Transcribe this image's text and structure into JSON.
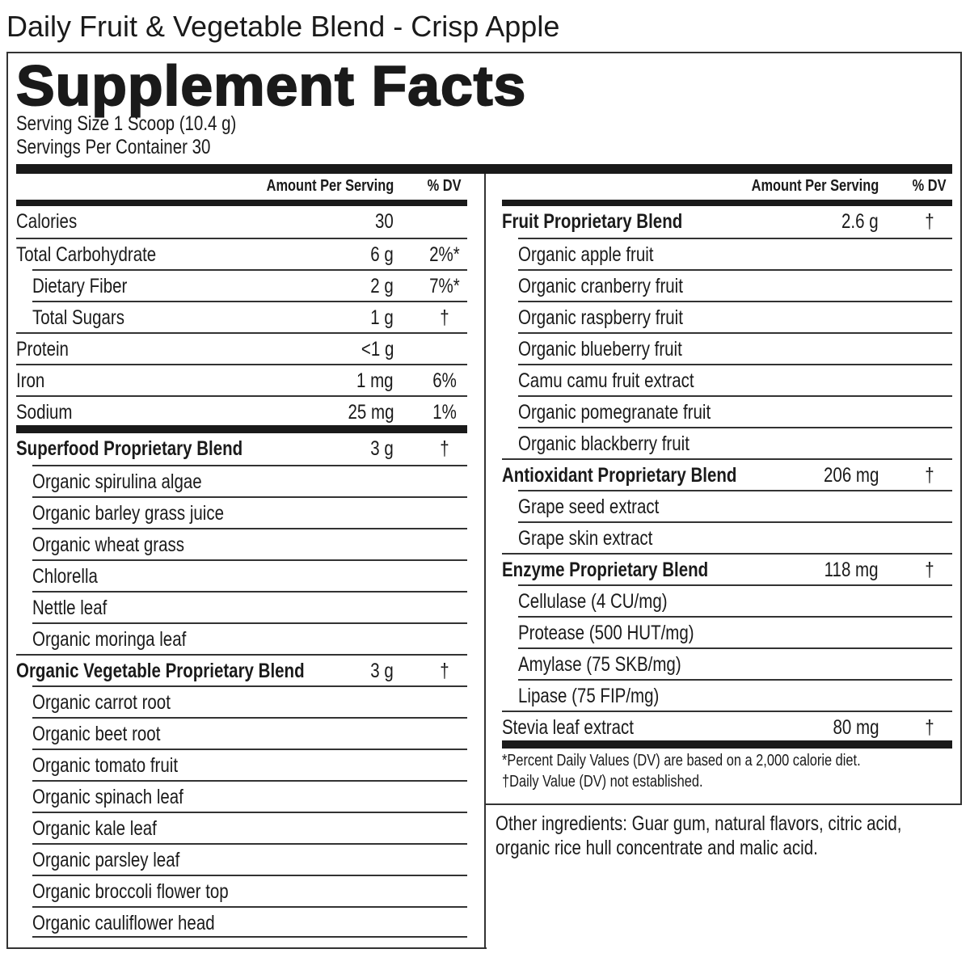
{
  "product_title": "Daily Fruit & Vegetable Blend - Crisp Apple",
  "facts_title": "Supplement Facts",
  "serving_size": "Serving Size 1 Scoop (10.4 g)",
  "servings_per_container": "Servings Per Container 30",
  "header": {
    "amount": "Amount Per Serving",
    "dv": "% DV"
  },
  "left_rows": [
    {
      "name": "Calories",
      "amount": "30",
      "dv": ""
    },
    {
      "name": "Total Carbohydrate",
      "amount": "6 g",
      "dv": "2%*"
    },
    {
      "name": "Dietary Fiber",
      "amount": "2 g",
      "dv": "7%*",
      "sub": true
    },
    {
      "name": "Total Sugars",
      "amount": "1 g",
      "dv": "†",
      "sub": true
    },
    {
      "name": "Protein",
      "amount": "<1 g",
      "dv": ""
    },
    {
      "name": "Iron",
      "amount": "1 mg",
      "dv": "6%"
    },
    {
      "name": "Sodium",
      "amount": "25 mg",
      "dv": "1%"
    },
    {
      "name": "Superfood Proprietary Blend",
      "amount": "3 g",
      "dv": "†",
      "bold": true
    },
    {
      "name": "Organic spirulina algae",
      "sub": true
    },
    {
      "name": "Organic barley grass juice",
      "sub": true
    },
    {
      "name": "Organic wheat grass",
      "sub": true
    },
    {
      "name": "Chlorella",
      "sub": true
    },
    {
      "name": "Nettle leaf",
      "sub": true
    },
    {
      "name": "Organic moringa leaf",
      "sub": true
    },
    {
      "name": "Organic Vegetable Proprietary Blend",
      "amount": "3 g",
      "dv": "†",
      "bold": true
    },
    {
      "name": "Organic carrot root",
      "sub": true
    },
    {
      "name": "Organic beet root",
      "sub": true
    },
    {
      "name": "Organic tomato fruit",
      "sub": true
    },
    {
      "name": "Organic spinach leaf",
      "sub": true
    },
    {
      "name": "Organic kale leaf",
      "sub": true
    },
    {
      "name": "Organic parsley leaf",
      "sub": true
    },
    {
      "name": "Organic broccoli flower top",
      "sub": true
    },
    {
      "name": "Organic cauliflower head",
      "sub": true
    }
  ],
  "right_rows": [
    {
      "name": "Fruit Proprietary Blend",
      "amount": "2.6 g",
      "dv": "†",
      "bold": true
    },
    {
      "name": "Organic apple fruit",
      "sub": true
    },
    {
      "name": "Organic cranberry fruit",
      "sub": true
    },
    {
      "name": "Organic raspberry fruit",
      "sub": true
    },
    {
      "name": "Organic blueberry fruit",
      "sub": true
    },
    {
      "name": "Camu camu fruit extract",
      "sub": true
    },
    {
      "name": "Organic pomegranate fruit",
      "sub": true
    },
    {
      "name": "Organic blackberry fruit",
      "sub": true
    },
    {
      "name": "Antioxidant Proprietary Blend",
      "amount": "206 mg",
      "dv": "†",
      "bold": true
    },
    {
      "name": "Grape seed extract",
      "sub": true
    },
    {
      "name": "Grape skin extract",
      "sub": true
    },
    {
      "name": "Enzyme Proprietary Blend",
      "amount": "118 mg",
      "dv": "†",
      "bold": true
    },
    {
      "name": "Cellulase (4 CU/mg)",
      "sub": true
    },
    {
      "name": "Protease (500 HUT/mg)",
      "sub": true
    },
    {
      "name": "Amylase (75 SKB/mg)",
      "sub": true
    },
    {
      "name": "Lipase (75 FIP/mg)",
      "sub": true
    },
    {
      "name": "Stevia leaf extract",
      "amount": "80 mg",
      "dv": "†"
    }
  ],
  "footnotes": [
    "*Percent Daily Values (DV) are based on a 2,000 calorie diet.",
    "†Daily Value (DV) not established."
  ],
  "other_ingredients": [
    "Other ingredients: Guar gum, natural flavors, citric acid,",
    "organic rice hull concentrate and malic acid."
  ]
}
